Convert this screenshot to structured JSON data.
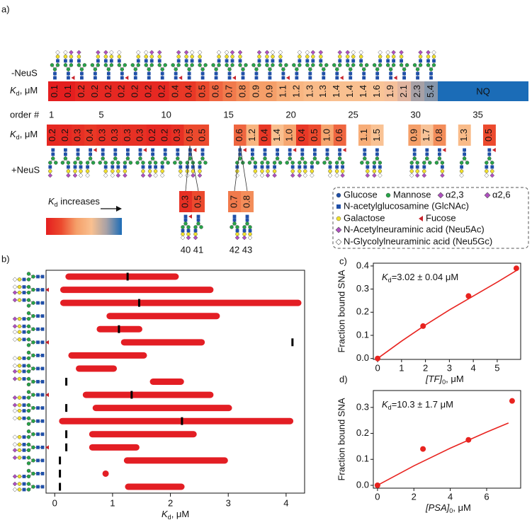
{
  "chart_data": [
    {
      "type": "heatmap",
      "label": "a)",
      "value_label": {
        "main": "K",
        "sub": "d",
        "tail": ", μM"
      },
      "order_label": "order #",
      "order_ticks": [
        1,
        5,
        10,
        15,
        20,
        25,
        30,
        35
      ],
      "rows": [
        {
          "name": "-NeuS",
          "values": [
            0.1,
            0.1,
            0.2,
            0.2,
            0.2,
            0.2,
            0.2,
            0.2,
            0.2,
            0.4,
            0.4,
            0.5,
            0.6,
            0.7,
            0.8,
            0.9,
            0.9,
            1.1,
            1.2,
            1.3,
            1.3,
            1.4,
            1.4,
            1.4,
            1.6,
            1.9,
            2.1,
            2.3,
            5.4
          ],
          "colors": [
            "#e41e1f",
            "#e41e1f",
            "#e62822",
            "#e62822",
            "#e62822",
            "#e62822",
            "#e62822",
            "#e62822",
            "#e62822",
            "#e93826",
            "#e93826",
            "#ec4a2e",
            "#ef6640",
            "#f17a4c",
            "#f38d5a",
            "#f59f69",
            "#f59f69",
            "#f7ad78",
            "#f8b581",
            "#f9bb89",
            "#f9bb89",
            "#f9c090",
            "#f9c090",
            "#f9c090",
            "#f9c497",
            "#f5c09b",
            "#e0b4a0",
            "#a7a1a6",
            "#8596ab"
          ],
          "extra_label": "NQ",
          "extra_color": "#1b6cb7"
        },
        {
          "name": "+NeuS",
          "values": [
            0.2,
            0.2,
            0.3,
            0.4,
            0.3,
            0.3,
            0.3,
            0.3,
            0.2,
            0.2,
            0.3,
            0.5,
            0.5,
            null,
            null,
            0.6,
            1.2,
            0.4,
            1.4,
            1.0,
            0.4,
            0.5,
            1.0,
            0.6,
            null,
            1.1,
            1.5,
            null,
            null,
            0.9,
            1.7,
            0.8,
            null,
            1.3,
            null,
            0.5
          ],
          "value_labels": [
            "0.2",
            "0.2",
            "0.3",
            "0.4",
            "0.3",
            "0.3",
            "0.3",
            "0.3",
            "0.2",
            "0.2",
            "0.3",
            "0.5",
            "0.5",
            null,
            null,
            "0.6",
            "1.2",
            "0.4",
            "1.4",
            "1.0",
            "0.4",
            "0.5",
            "1.0",
            "0.6",
            null,
            "1.1",
            "1.5",
            null,
            null,
            "0.9",
            "1.7",
            "0.8",
            null,
            "1.3",
            null,
            "0.5"
          ],
          "colors": [
            "#e62822",
            "#e62822",
            "#e73024",
            "#e93826",
            "#e73024",
            "#e73024",
            "#e73024",
            "#e73024",
            "#e62822",
            "#e62822",
            "#e73024",
            "#ec4a2e",
            "#ec4a2e",
            null,
            null,
            "#ef6640",
            "#f8b581",
            "#e93826",
            "#f9c090",
            "#f6a670",
            "#e93826",
            "#ec4a2e",
            "#f6a670",
            "#ef6640",
            null,
            "#f7ad78",
            "#f9c294",
            null,
            null,
            "#f59f69",
            "#f8c398",
            "#f38d5a",
            null,
            "#f9bb89",
            null,
            "#ec4a2e"
          ]
        }
      ],
      "extra": {
        "orders": [
          40,
          41,
          42,
          43
        ],
        "values": [
          0.3,
          0.5,
          0.7,
          0.8
        ],
        "colors": [
          "#e73024",
          "#ec4a2e",
          "#f17a4c",
          "#f38d5a"
        ]
      },
      "colorbar_label": {
        "main": "K",
        "sub": "d",
        "tail": " increases"
      },
      "colorbar": [
        "#e41e1f",
        "#ec4a2e",
        "#f59f69",
        "#f9c090",
        "#a7a1a6",
        "#1b6cb7"
      ],
      "legend": [
        {
          "name": "Glucose",
          "color": "#1f4fa8",
          "shape": "circle"
        },
        {
          "name": "Mannose",
          "color": "#27a348",
          "shape": "circle"
        },
        {
          "name": "α2,3",
          "color": "#b04fc0",
          "shape": "diamond"
        },
        {
          "name": "α2,6",
          "color": "#b04fc0",
          "shape": "diamond"
        },
        {
          "name": "N-acetylglucosamine (GlcNAc)",
          "color": "#1f4fa8",
          "shape": "square"
        },
        {
          "name": "Galactose",
          "color": "#f2e12b",
          "shape": "circle"
        },
        {
          "name": "Fucose",
          "color": "#c8232c",
          "shape": "triangle"
        },
        {
          "name": "N-Acetylneuraminic acid (Neu5Ac)",
          "color": "#b04fc0",
          "shape": "diamond"
        },
        {
          "name": "N-Glycolylneuraminic acid (Neu5Gc)",
          "color": "#ffffff",
          "shape": "diamond"
        }
      ]
    },
    {
      "type": "range",
      "label": "b)",
      "starts": [
        0.24,
        0.15,
        0.15,
        0.95,
        0.78,
        1.2,
        0.29,
        0.42,
        1.7,
        0.54,
        0.71,
        0.13,
        0.65,
        0.65,
        1.25,
        0.88,
        1.27
      ],
      "ends": [
        2.09,
        2.69,
        4.21,
        2.8,
        1.46,
        2.54,
        1.54,
        1.02,
        2.18,
        2.69,
        3.01,
        4.07,
        2.4,
        1.41,
        2.94,
        0.88,
        2.19
      ],
      "markers": [
        1.26,
        null,
        1.46,
        null,
        1.11,
        4.11,
        null,
        null,
        0.2,
        1.33,
        0.2,
        2.2,
        0.2,
        0.2,
        0.09,
        0.09,
        0.09
      ],
      "color": "#e31e24",
      "marker_color": "#000000",
      "xlim": [
        -0.15,
        4.32
      ],
      "xticks": [
        0,
        1,
        2,
        3,
        4
      ],
      "xlabel": {
        "main": "K",
        "sub": "d",
        "tail": ", μM"
      }
    },
    {
      "type": "scatter",
      "label": "c)",
      "x": [
        0,
        1.9,
        3.8,
        5.8
      ],
      "values": [
        0,
        0.14,
        0.27,
        0.39
      ],
      "color": "#e8231f",
      "fit": {
        "x": [
          0,
          1,
          2,
          3,
          4,
          5,
          5.8
        ],
        "values": [
          0,
          0.075,
          0.145,
          0.21,
          0.27,
          0.33,
          0.38
        ]
      },
      "xlim": [
        -0.18,
        5.98
      ],
      "ylim": [
        -0.004,
        0.412
      ],
      "xticks": [
        0,
        1,
        2,
        3,
        4,
        5
      ],
      "yticks": [
        {
          "value": 0,
          "label": "0.0"
        },
        0.1,
        0.2,
        0.3,
        0.4
      ],
      "annotation": {
        "main": "K",
        "sub": "d",
        "tail": "=3.02 ± 0.04 μM"
      },
      "xlabel": {
        "main": "[TF]",
        "sub": "0",
        "tail": ", μM"
      },
      "ylabel": "Fraction bound SNA"
    },
    {
      "type": "scatter",
      "label": "d)",
      "x": [
        0,
        2.5,
        5,
        7.4
      ],
      "values": [
        0,
        0.14,
        0.175,
        0.325
      ],
      "color": "#e8231f",
      "fit": {
        "x": [
          0,
          2,
          4,
          6,
          7.2
        ],
        "values": [
          0,
          0.075,
          0.143,
          0.205,
          0.24
        ]
      },
      "xlim": [
        -0.23,
        7.87
      ],
      "ylim": [
        -0.011,
        0.365
      ],
      "xticks": [
        0,
        2,
        4,
        6
      ],
      "yticks": [
        {
          "value": 0,
          "label": "0.0"
        },
        0.1,
        0.2,
        0.3
      ],
      "annotation": {
        "main": "K",
        "sub": "d",
        "tail": "=10.3 ± 1.7 μM"
      },
      "xlabel": {
        "main": "[PSA]",
        "sub": "0",
        "tail": ", μM"
      },
      "ylabel": "Fraction bound SNA"
    }
  ]
}
